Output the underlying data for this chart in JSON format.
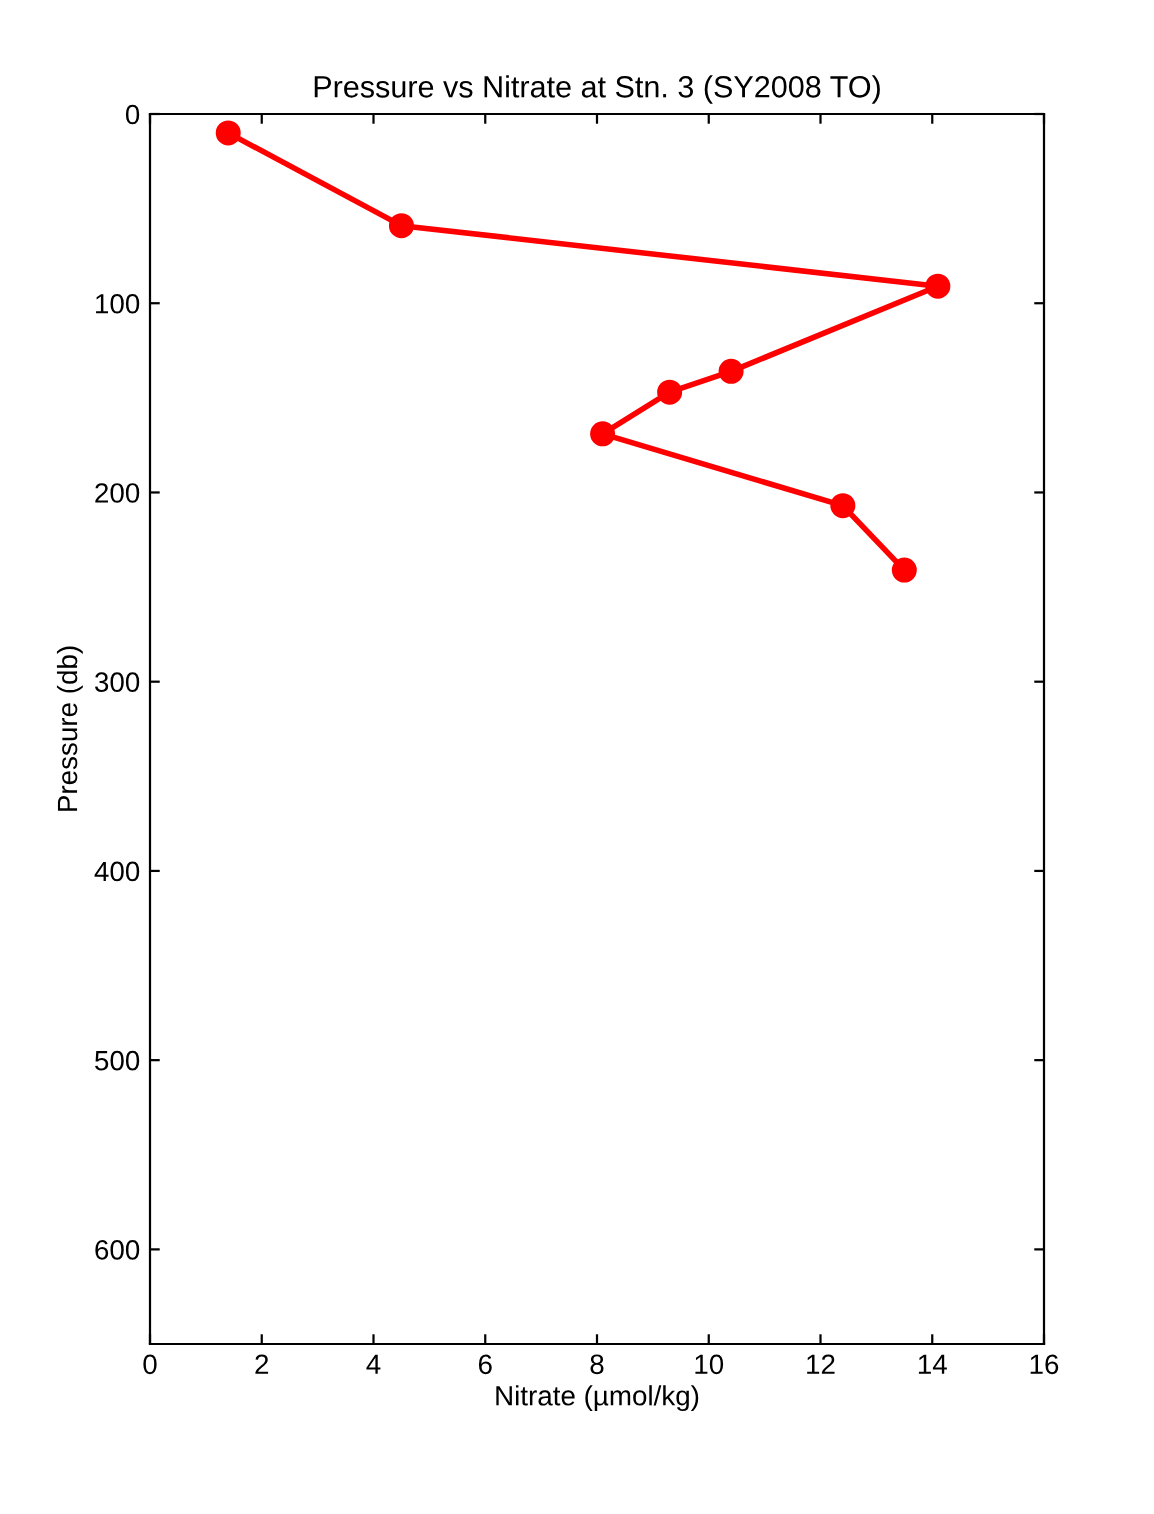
{
  "chart_data": {
    "type": "line",
    "title": "Pressure vs Nitrate at Stn. 3 (SY2008 TO)",
    "xlabel": "Nitrate (µmol/kg)",
    "ylabel": "Pressure (db)",
    "series": [
      {
        "color": "#ff0000",
        "x": [
          1.4,
          4.5,
          14.1,
          10.4,
          9.3,
          8.1,
          12.4,
          13.5
        ],
        "values": [
          10,
          59,
          91,
          136,
          147,
          169,
          207,
          241
        ]
      }
    ],
    "xlim": [
      0,
      16
    ],
    "xticks": [
      0,
      2,
      4,
      6,
      8,
      10,
      12,
      14,
      16
    ],
    "ylim": [
      650,
      0
    ],
    "yticks": [
      0,
      100,
      200,
      300,
      400,
      500,
      600
    ],
    "marker": "circle",
    "line_style": "solid",
    "grid": false,
    "legend": false
  }
}
